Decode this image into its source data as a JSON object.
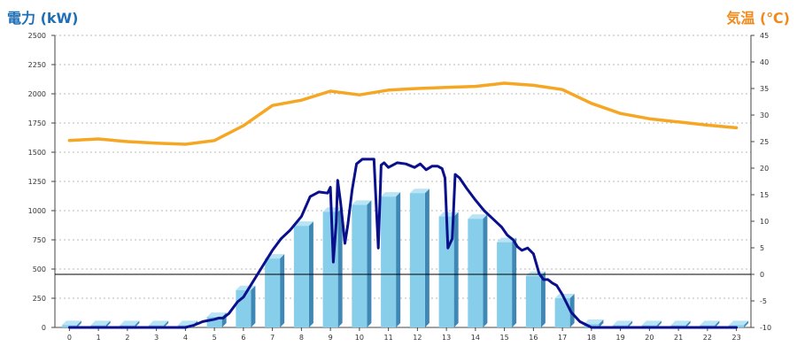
{
  "chart_data": {
    "type": "bar",
    "left_axis_label": "電力 (kW)",
    "right_axis_label": "気温 (℃)",
    "left_ylim": [
      0,
      2500
    ],
    "left_ticks": [
      0,
      250,
      500,
      750,
      1000,
      1250,
      1500,
      1750,
      2000,
      2250,
      2500
    ],
    "right_ylim": [
      -10,
      45
    ],
    "right_ticks": [
      -10,
      -5,
      0,
      5,
      10,
      15,
      20,
      25,
      30,
      35,
      40,
      45
    ],
    "categories": [
      "0",
      "1",
      "2",
      "3",
      "4",
      "5",
      "6",
      "7",
      "8",
      "9",
      "10",
      "11",
      "12",
      "13",
      "14",
      "15",
      "16",
      "17",
      "18",
      "19",
      "20",
      "21",
      "22",
      "23"
    ],
    "grid": true,
    "series": [
      {
        "kind": "bar",
        "axis": "left",
        "color": "#87ceeb",
        "values": [
          20,
          20,
          20,
          20,
          20,
          90,
          320,
          590,
          870,
          990,
          1050,
          1120,
          1150,
          950,
          930,
          730,
          440,
          250,
          30,
          20,
          20,
          20,
          20,
          20
        ]
      },
      {
        "kind": "line",
        "axis": "left",
        "color": "#0a0f8c",
        "x": [
          0,
          1,
          2,
          3,
          4,
          4.3,
          4.6,
          5,
          5.15,
          5.3,
          5.5,
          5.8,
          6,
          6.3,
          6.6,
          7,
          7.3,
          7.6,
          8,
          8.3,
          8.6,
          8.9,
          9,
          9.1,
          9.2,
          9.25,
          9.35,
          9.5,
          9.6,
          9.75,
          9.9,
          10.1,
          10.3,
          10.5,
          10.65,
          10.75,
          10.85,
          11,
          11.3,
          11.6,
          11.9,
          12.1,
          12.3,
          12.5,
          12.7,
          12.85,
          12.95,
          13.05,
          13.2,
          13.3,
          13.45,
          13.7,
          14,
          14.3,
          14.6,
          14.9,
          15.1,
          15.3,
          15.45,
          15.6,
          15.8,
          16,
          16.2,
          16.35,
          16.5,
          16.65,
          16.8,
          17,
          17.3,
          17.6,
          18,
          19,
          20,
          21,
          22,
          23
        ],
        "y": [
          0,
          0,
          0,
          0,
          0,
          20,
          50,
          70,
          80,
          80,
          120,
          220,
          260,
          380,
          500,
          660,
          760,
          830,
          950,
          1120,
          1160,
          1150,
          1200,
          560,
          900,
          1260,
          1070,
          720,
          880,
          1180,
          1400,
          1440,
          1440,
          1440,
          680,
          1390,
          1410,
          1370,
          1410,
          1400,
          1370,
          1400,
          1350,
          1380,
          1380,
          1360,
          1280,
          680,
          760,
          1310,
          1280,
          1190,
          1090,
          1000,
          930,
          860,
          790,
          750,
          690,
          660,
          680,
          630,
          460,
          410,
          410,
          380,
          360,
          280,
          130,
          50,
          0,
          0,
          0,
          0,
          0,
          0
        ]
      },
      {
        "kind": "line",
        "axis": "right",
        "color": "#f5a623",
        "values": [
          25.2,
          25.5,
          25.0,
          24.7,
          24.5,
          25.2,
          28.0,
          31.8,
          32.8,
          34.5,
          33.8,
          34.7,
          35.0,
          35.2,
          35.4,
          36.0,
          35.6,
          34.8,
          32.2,
          30.3,
          29.3,
          28.7,
          28.1,
          27.6
        ]
      }
    ]
  }
}
